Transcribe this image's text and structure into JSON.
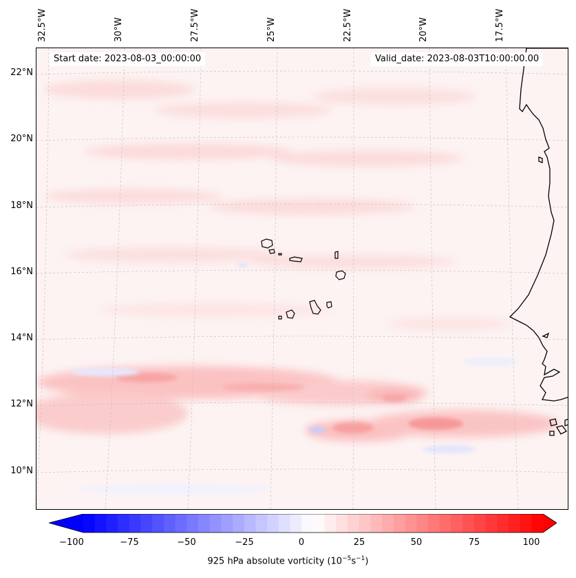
{
  "map": {
    "start_date": "Start date: 2023-08-03_00:00:00",
    "valid_date": "Valid_date: 2023-08-03T10:00:00.00",
    "lon_labels": [
      "32.5°W",
      "30°W",
      "27.5°W",
      "25°W",
      "22.5°W",
      "20°W",
      "17.5°W"
    ],
    "lat_labels": [
      "22°N",
      "20°N",
      "18°N",
      "16°N",
      "14°N",
      "12°N",
      "10°N"
    ],
    "coastline_color": "#000000",
    "gridline_color": "#bbbbbb",
    "features": [
      "Cape Verde islands",
      "West African coastline (Senegal, Gambia, Guinea-Bissau)"
    ]
  },
  "colorbar": {
    "tick_labels": [
      "−100",
      "−75",
      "−50",
      "−25",
      "0",
      "25",
      "50",
      "75",
      "100"
    ],
    "min": -100,
    "max": 100,
    "colormap": "bwr",
    "low_color": "#0000ff",
    "mid_color": "#ffffff",
    "high_color": "#ff0000",
    "label_prefix": "925 hPa absolute vorticity (10",
    "label_exp1": "−5",
    "label_mid": "s",
    "label_exp2": "−1",
    "label_suffix": ")"
  }
}
